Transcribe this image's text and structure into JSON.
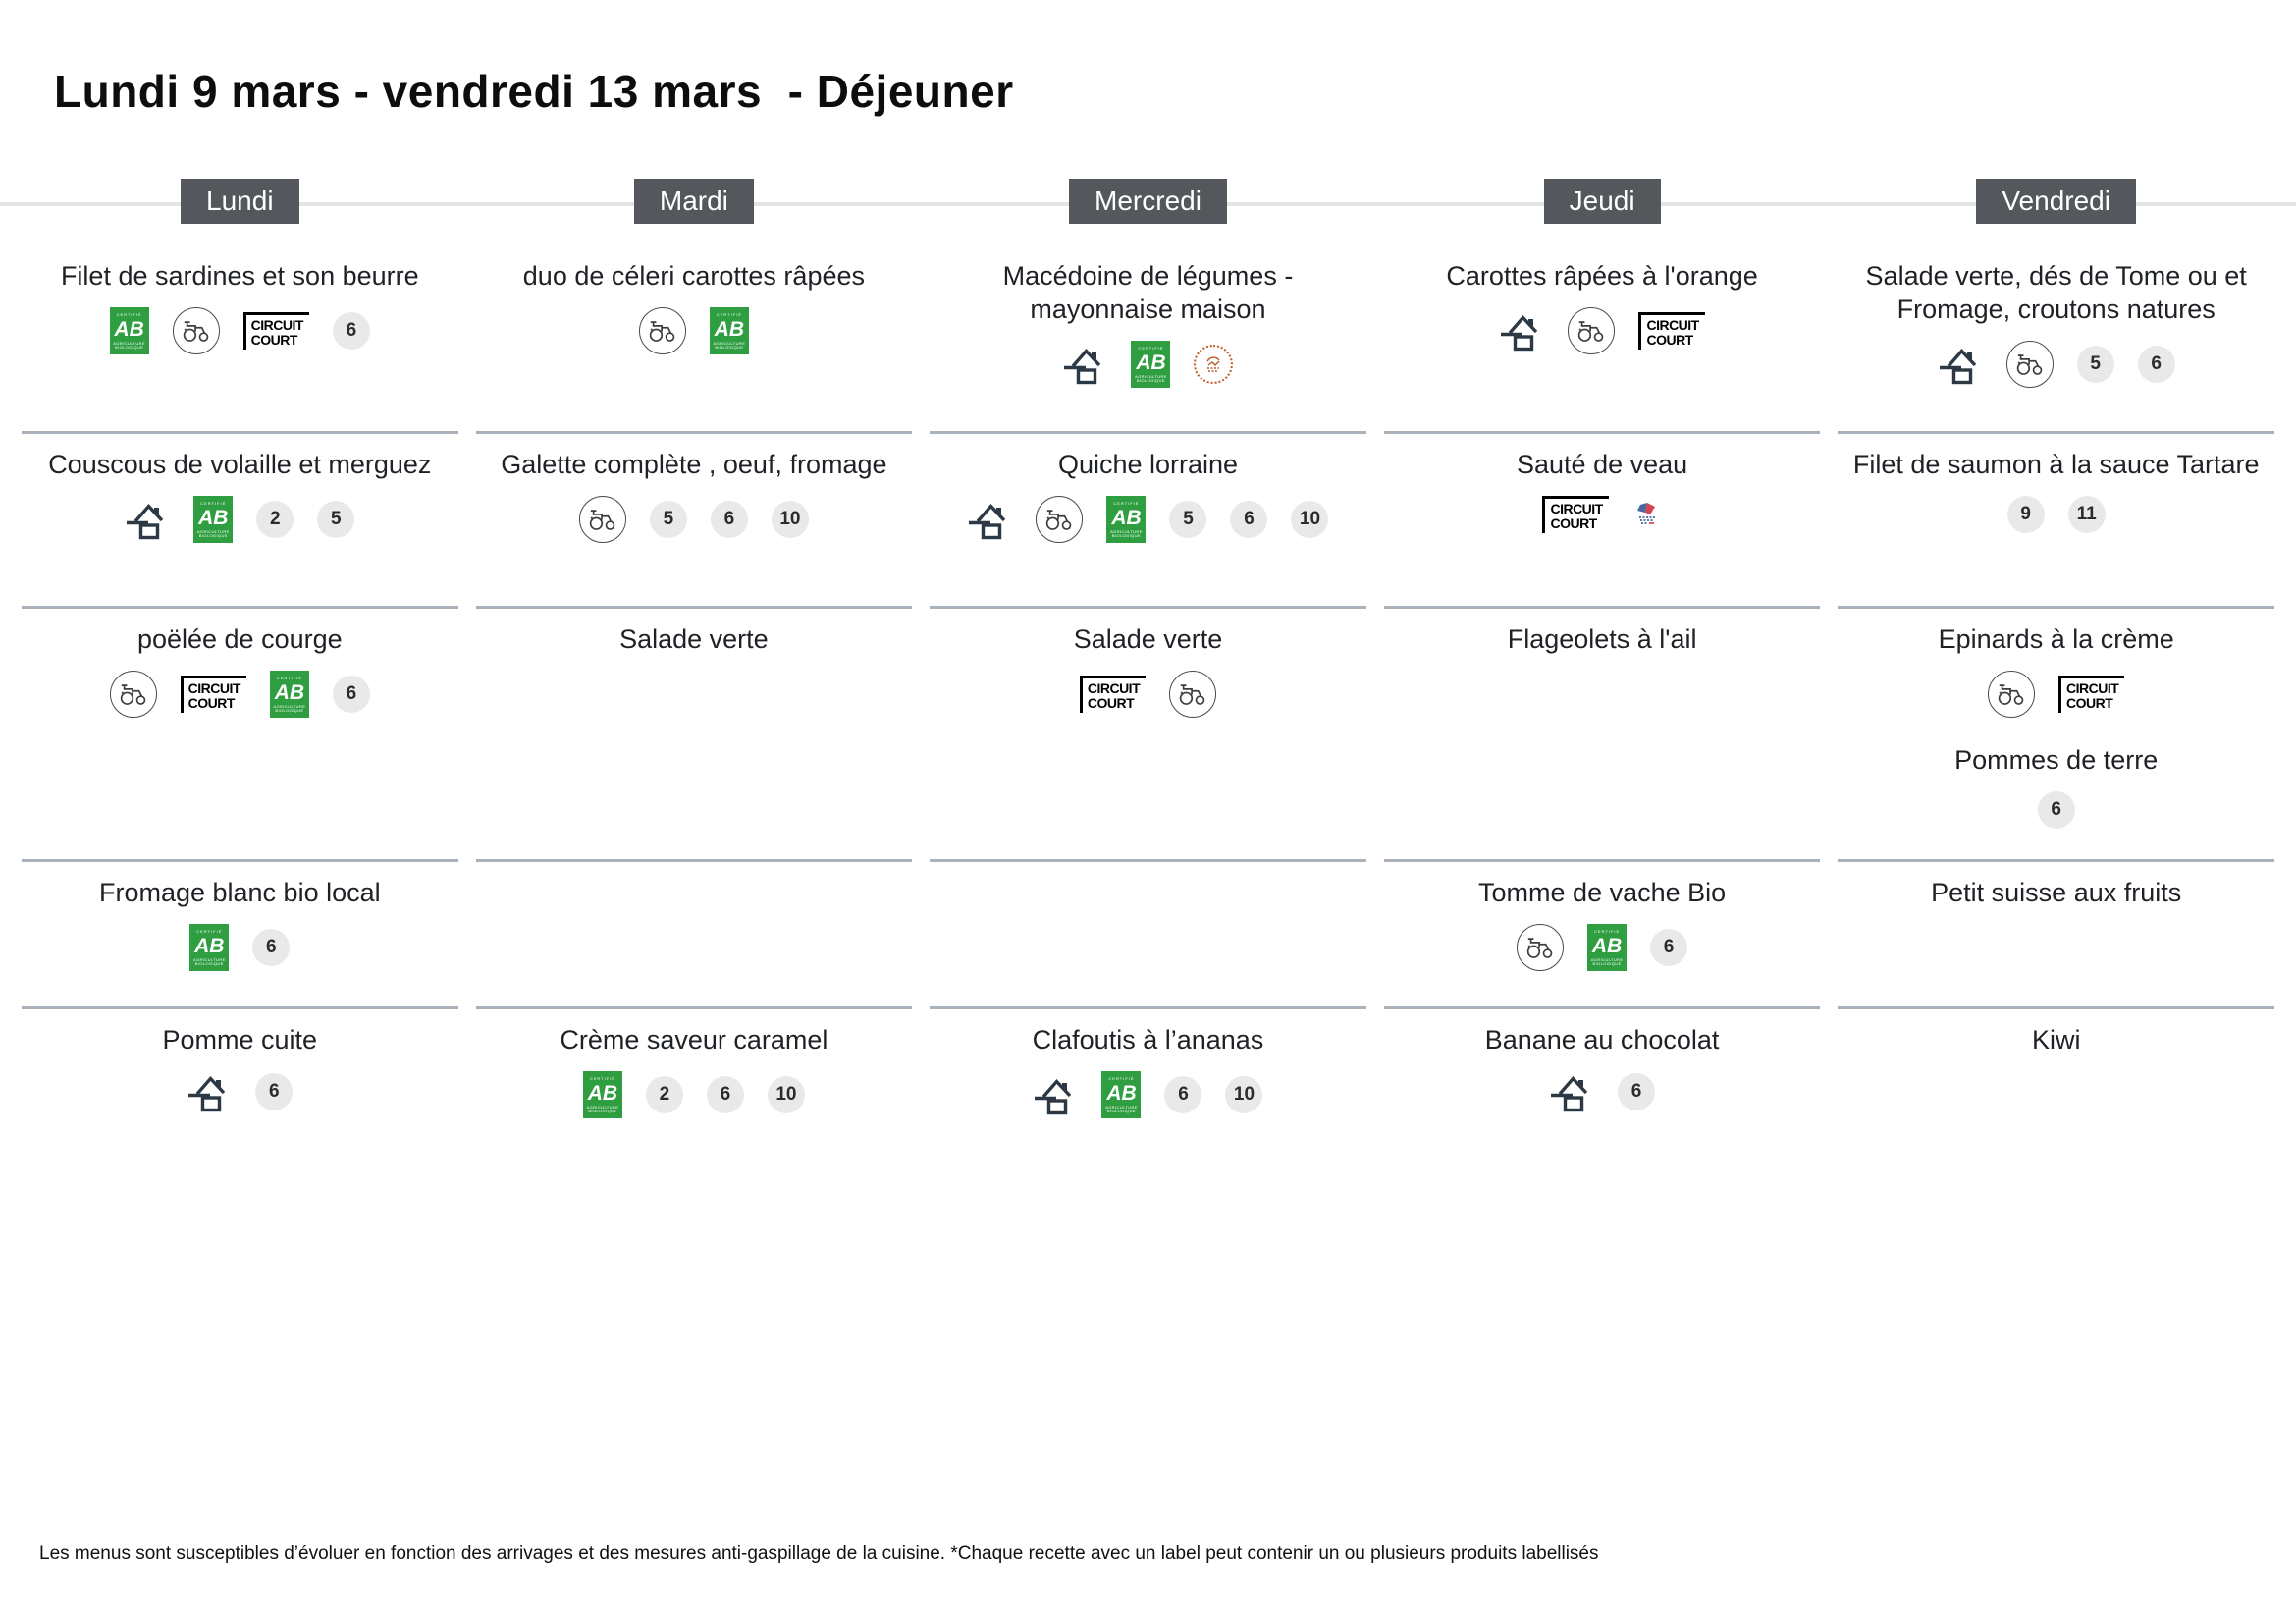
{
  "page": {
    "title": "Lundi 9 mars - vendredi 13 mars  - Déjeuner",
    "footer": "Les menus sont susceptibles d’évoluer en fonction des arrivages et des mesures anti-gaspillage de la cuisine. *Chaque recette avec un label peut contenir un ou plusieurs produits labellisés"
  },
  "icon_labels": {
    "bio_top": "CERTIFIÉ",
    "bio_main": "AB",
    "bio_bottom": "AGRICULTURE BIOLOGIQUE",
    "circuit_court_line1": "CIRCUIT",
    "circuit_court_line2": "COURT"
  },
  "colors": {
    "day_header_bg": "#54585c",
    "separator": "#a9b2ba",
    "bio_green": "#2f9e41",
    "allergen_bg": "#e9e9e9",
    "fait_maison": "#2c3944",
    "seal_orange": "#c05a28",
    "flag_blue": "#2a4b8d",
    "flag_red": "#cc2233"
  },
  "menu": {
    "days": [
      {
        "label": "Lundi",
        "rows": [
          {
            "items": [
              {
                "name": "Filet de sardines et son beurre",
                "icons": [
                  {
                    "type": "bio"
                  },
                  {
                    "type": "tractor"
                  },
                  {
                    "type": "circuit_court"
                  },
                  {
                    "type": "allergen",
                    "value": "6"
                  }
                ]
              }
            ]
          },
          {
            "items": [
              {
                "name": "Couscous de volaille et merguez",
                "icons": [
                  {
                    "type": "fait_maison"
                  },
                  {
                    "type": "bio"
                  },
                  {
                    "type": "allergen",
                    "value": "2"
                  },
                  {
                    "type": "allergen",
                    "value": "5"
                  }
                ]
              }
            ]
          },
          {
            "items": [
              {
                "name": "poëlée de courge",
                "icons": [
                  {
                    "type": "tractor"
                  },
                  {
                    "type": "circuit_court"
                  },
                  {
                    "type": "bio"
                  },
                  {
                    "type": "allergen",
                    "value": "6"
                  }
                ]
              }
            ]
          },
          {
            "items": [
              {
                "name": "Fromage blanc bio local",
                "icons": [
                  {
                    "type": "bio"
                  },
                  {
                    "type": "allergen",
                    "value": "6"
                  }
                ]
              }
            ]
          },
          {
            "items": [
              {
                "name": "Pomme cuite",
                "icons": [
                  {
                    "type": "fait_maison"
                  },
                  {
                    "type": "allergen",
                    "value": "6"
                  }
                ]
              }
            ]
          }
        ]
      },
      {
        "label": "Mardi",
        "rows": [
          {
            "items": [
              {
                "name": "duo de céleri carottes râpées",
                "icons": [
                  {
                    "type": "tractor"
                  },
                  {
                    "type": "bio"
                  }
                ]
              }
            ]
          },
          {
            "items": [
              {
                "name": "Galette complète , oeuf, fromage",
                "icons": [
                  {
                    "type": "tractor"
                  },
                  {
                    "type": "allergen",
                    "value": "5"
                  },
                  {
                    "type": "allergen",
                    "value": "6"
                  },
                  {
                    "type": "allergen",
                    "value": "10"
                  }
                ]
              }
            ]
          },
          {
            "items": [
              {
                "name": "Salade verte",
                "icons": []
              }
            ]
          },
          {
            "items": []
          },
          {
            "items": [
              {
                "name": "Crème saveur caramel",
                "icons": [
                  {
                    "type": "bio"
                  },
                  {
                    "type": "allergen",
                    "value": "2"
                  },
                  {
                    "type": "allergen",
                    "value": "6"
                  },
                  {
                    "type": "allergen",
                    "value": "10"
                  }
                ]
              }
            ]
          }
        ]
      },
      {
        "label": "Mercredi",
        "rows": [
          {
            "items": [
              {
                "name": "Macédoine de légumes - mayonnaise maison",
                "icons": [
                  {
                    "type": "fait_maison"
                  },
                  {
                    "type": "bio"
                  },
                  {
                    "type": "seal_orange"
                  }
                ]
              }
            ]
          },
          {
            "items": [
              {
                "name": "Quiche lorraine",
                "icons": [
                  {
                    "type": "fait_maison"
                  },
                  {
                    "type": "tractor"
                  },
                  {
                    "type": "bio"
                  },
                  {
                    "type": "allergen",
                    "value": "5"
                  },
                  {
                    "type": "allergen",
                    "value": "6"
                  },
                  {
                    "type": "allergen",
                    "value": "10"
                  }
                ]
              }
            ]
          },
          {
            "items": [
              {
                "name": "Salade verte",
                "icons": [
                  {
                    "type": "circuit_court"
                  },
                  {
                    "type": "tractor"
                  }
                ]
              }
            ]
          },
          {
            "items": []
          },
          {
            "items": [
              {
                "name": "Clafoutis à l’ananas",
                "icons": [
                  {
                    "type": "fait_maison"
                  },
                  {
                    "type": "bio"
                  },
                  {
                    "type": "allergen",
                    "value": "6"
                  },
                  {
                    "type": "allergen",
                    "value": "10"
                  }
                ]
              }
            ]
          }
        ]
      },
      {
        "label": "Jeudi",
        "rows": [
          {
            "items": [
              {
                "name": "Carottes râpées à l'orange",
                "icons": [
                  {
                    "type": "fait_maison"
                  },
                  {
                    "type": "tractor"
                  },
                  {
                    "type": "circuit_court"
                  }
                ]
              }
            ]
          },
          {
            "items": [
              {
                "name": "Sauté de veau",
                "icons": [
                  {
                    "type": "circuit_court"
                  },
                  {
                    "type": "viande_france"
                  }
                ]
              }
            ]
          },
          {
            "items": [
              {
                "name": "Flageolets à l'ail",
                "icons": []
              }
            ]
          },
          {
            "items": [
              {
                "name": "Tomme de vache Bio",
                "icons": [
                  {
                    "type": "tractor"
                  },
                  {
                    "type": "bio"
                  },
                  {
                    "type": "allergen",
                    "value": "6"
                  }
                ]
              }
            ]
          },
          {
            "items": [
              {
                "name": "Banane au chocolat",
                "icons": [
                  {
                    "type": "fait_maison"
                  },
                  {
                    "type": "allergen",
                    "value": "6"
                  }
                ]
              }
            ]
          }
        ]
      },
      {
        "label": "Vendredi",
        "rows": [
          {
            "items": [
              {
                "name": "Salade verte, dés de Tome ou et Fromage, croutons natures",
                "icons": [
                  {
                    "type": "fait_maison"
                  },
                  {
                    "type": "tractor"
                  },
                  {
                    "type": "allergen",
                    "value": "5"
                  },
                  {
                    "type": "allergen",
                    "value": "6"
                  }
                ]
              }
            ]
          },
          {
            "items": [
              {
                "name": "Filet de saumon à la sauce Tartare",
                "icons": [
                  {
                    "type": "allergen",
                    "value": "9"
                  },
                  {
                    "type": "allergen",
                    "value": "11"
                  }
                ]
              }
            ]
          },
          {
            "items": [
              {
                "name": "Epinards à la crème",
                "icons": [
                  {
                    "type": "tractor"
                  },
                  {
                    "type": "circuit_court"
                  }
                ]
              },
              {
                "name": "Pommes de terre",
                "icons": [
                  {
                    "type": "allergen",
                    "value": "6"
                  }
                ]
              }
            ]
          },
          {
            "items": [
              {
                "name": "Petit suisse aux fruits",
                "icons": []
              }
            ]
          },
          {
            "items": [
              {
                "name": "Kiwi",
                "icons": []
              }
            ]
          }
        ]
      }
    ]
  }
}
